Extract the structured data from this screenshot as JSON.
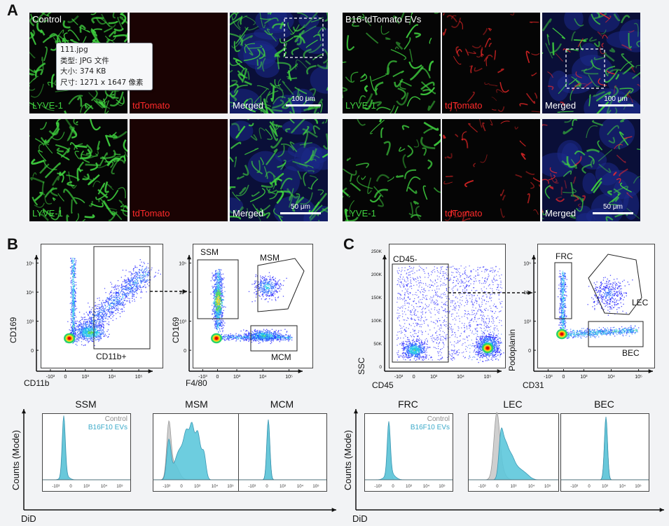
{
  "figure": {
    "panel_a": {
      "letter": "A",
      "control_title": "Control",
      "ev_title": "B16-tdTomato EVs",
      "channels": [
        "LYVE-1",
        "tdTomato",
        "Merged"
      ],
      "scale_top": "100 μm",
      "scale_bottom": "50 μm",
      "colors": {
        "lyve": "#3fd13f",
        "tdtomato": "#ff2a2a",
        "nuclei": "#1e2a9a"
      }
    },
    "tooltip": {
      "filename": "111.jpg",
      "type": "类型: JPG 文件",
      "size": "大小: 374 KB",
      "dims": "尺寸: 1271 x 1647 像素"
    },
    "panel_b": {
      "letter": "B",
      "plot1": {
        "ylabel": "CD169",
        "xlabel": "CD11b",
        "gate": "CD11b+"
      },
      "plot2": {
        "ylabel": "CD169",
        "xlabel": "F4/80",
        "gates": [
          "SSM",
          "MSM",
          "MCM"
        ]
      },
      "hist_titles": [
        "SSM",
        "MSM",
        "MCM"
      ],
      "legend": {
        "control": "Control",
        "ev": "B16F10 EVs"
      },
      "ylabel": "Counts (Mode)",
      "xlabel": "DiD"
    },
    "panel_c": {
      "letter": "C",
      "plot1": {
        "ylabel": "SSC",
        "xlabel": "CD45",
        "gate": "CD45-",
        "yticks": [
          "250K",
          "200K",
          "150K",
          "100K",
          "50K",
          "0"
        ]
      },
      "plot2": {
        "ylabel": "Podoplanin",
        "xlabel": "CD31",
        "gates": [
          "FRC",
          "LEC",
          "BEC"
        ]
      },
      "hist_titles": [
        "FRC",
        "LEC",
        "BEC"
      ],
      "legend": {
        "control": "Control",
        "ev": "B16F10 EVs"
      },
      "ylabel": "Counts (Mode)",
      "xlabel": "DiD"
    },
    "log_ticks": {
      "ten5": "10⁵",
      "ten4": "10⁴",
      "ten3": "10³",
      "zero": "0",
      "neg3": "-10³"
    },
    "colors": {
      "control_fill": "#cfcfcf",
      "ev_fill": "#5ec8dc",
      "ev_text": "#3aa9c9",
      "control_text": "#8a8a8a"
    }
  }
}
